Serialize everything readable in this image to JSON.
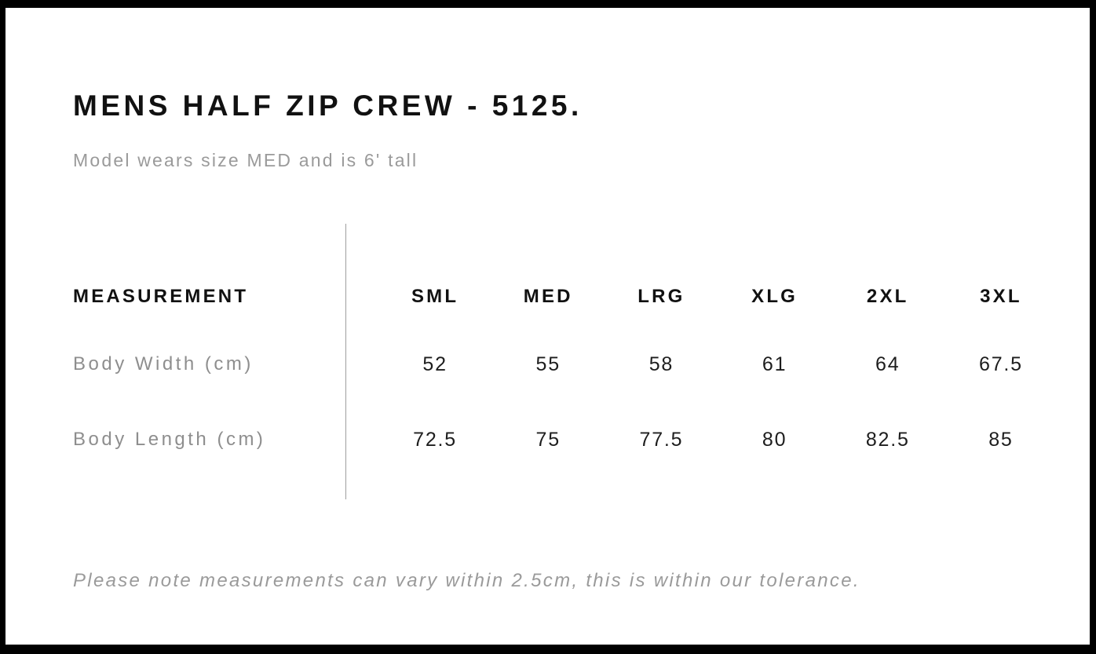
{
  "page": {
    "title": "MENS HALF ZIP CREW - 5125.",
    "subtitle": "Model wears size MED and is 6' tall",
    "footnote": "Please note measurements can vary within 2.5cm, this is within our tolerance."
  },
  "chart_data": {
    "type": "table",
    "title": "MENS HALF ZIP CREW - 5125.",
    "columns": [
      "MEASUREMENT",
      "SML",
      "MED",
      "LRG",
      "XLG",
      "2XL",
      "3XL"
    ],
    "rows": [
      {
        "label": "Body Width (cm)",
        "values": [
          52,
          55,
          58,
          61,
          64,
          67.5
        ]
      },
      {
        "label": "Body Length (cm)",
        "values": [
          72.5,
          75,
          77.5,
          80,
          82.5,
          85
        ]
      }
    ]
  },
  "colors": {
    "frame": "#000000",
    "heading_text": "#111111",
    "muted_text": "#9a9a9a",
    "label_text": "#8e8e8e",
    "value_text": "#1d1d1d",
    "divider": "#9f9f9f",
    "background": "#ffffff"
  }
}
